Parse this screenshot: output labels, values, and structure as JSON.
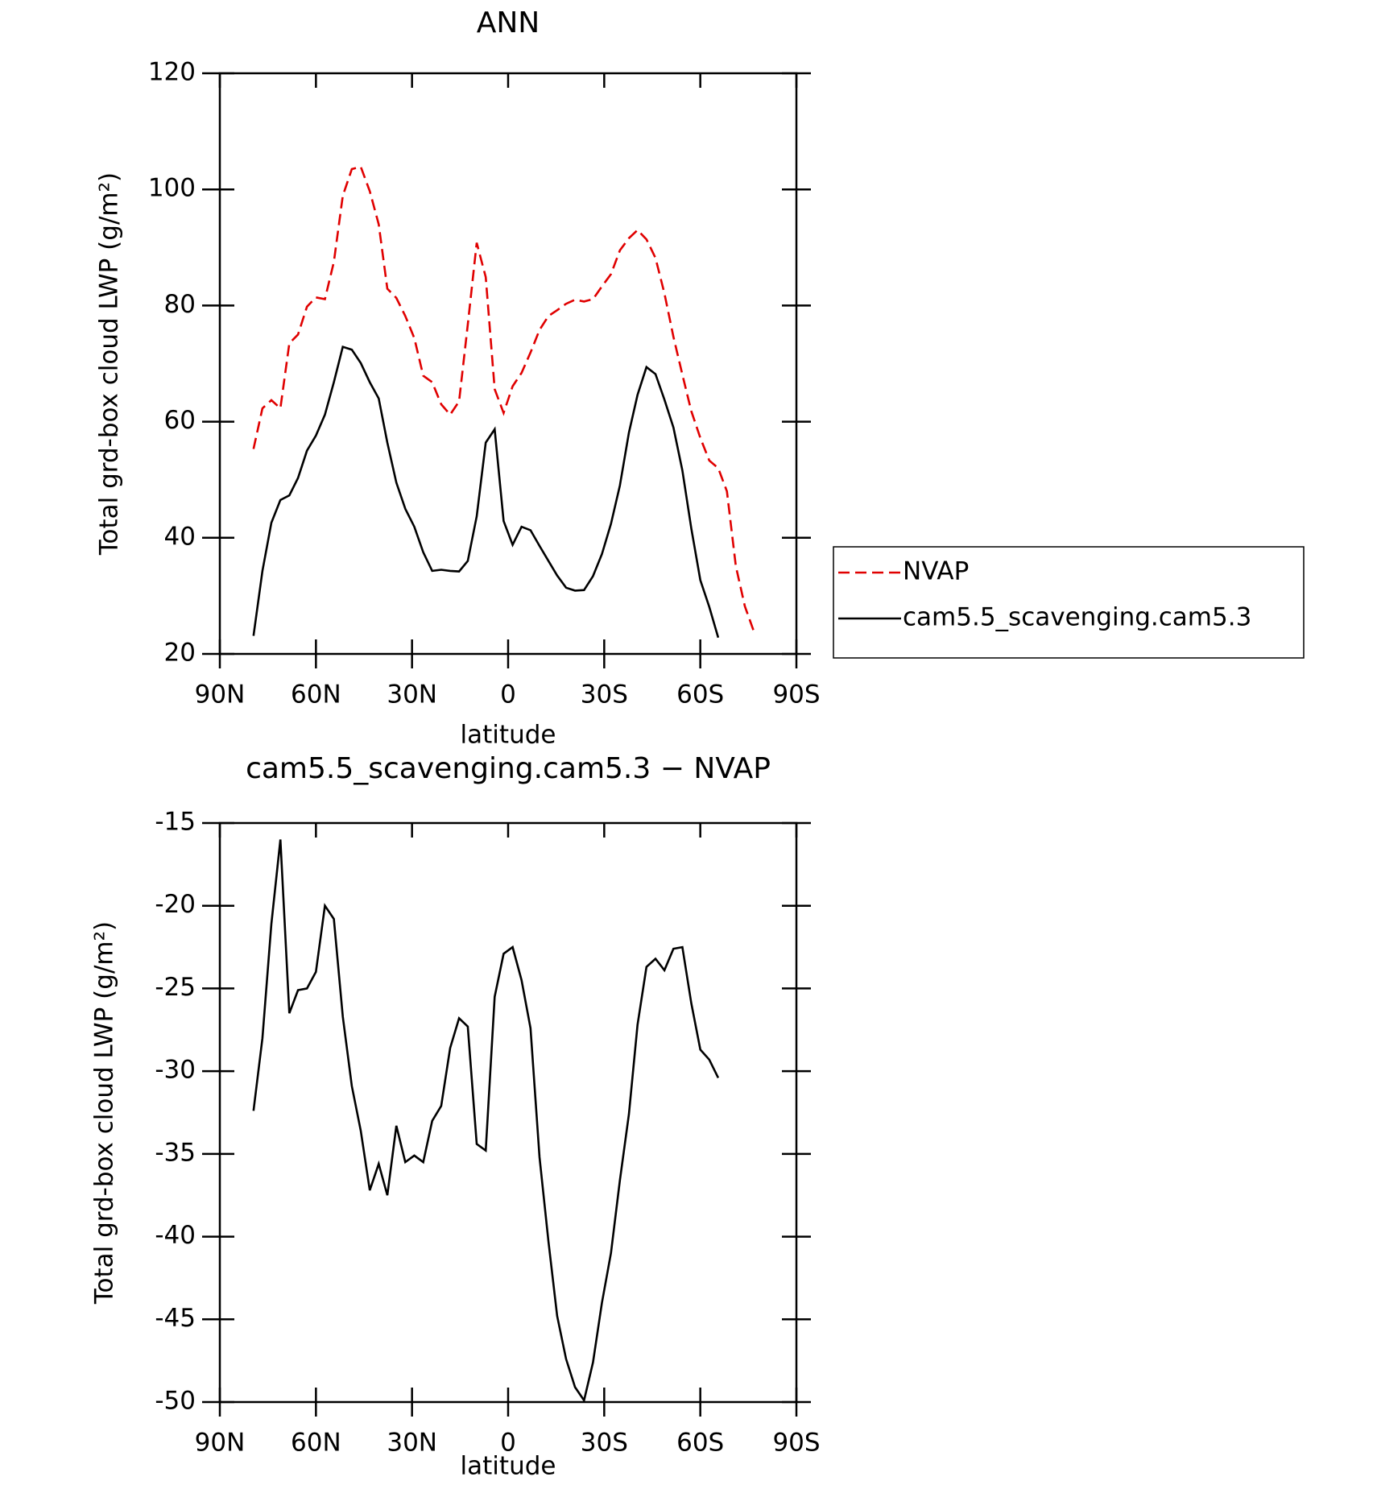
{
  "chart_data": [
    {
      "type": "line",
      "title": "ANN",
      "xlabel": "latitude",
      "ylabel": "Total grd-box cloud LWP (g/m²)",
      "x": [
        79.5,
        76.7,
        73.9,
        71.1,
        68.3,
        65.6,
        62.8,
        60.0,
        57.2,
        54.4,
        51.6,
        48.8,
        46.0,
        43.2,
        40.4,
        37.7,
        34.9,
        32.1,
        29.3,
        26.5,
        23.7,
        20.9,
        18.1,
        15.3,
        12.6,
        9.8,
        7.0,
        4.2,
        1.4,
        -1.4,
        -4.2,
        -7.0,
        -9.8,
        -12.6,
        -15.3,
        -18.1,
        -20.9,
        -23.7,
        -26.5,
        -29.3,
        -32.1,
        -34.9,
        -37.7,
        -40.4,
        -43.2,
        -46.0,
        -48.8,
        -51.6,
        -54.4,
        -57.2,
        -60.0,
        -62.8,
        -65.6,
        -68.3,
        -71.1,
        -73.9,
        -76.7
      ],
      "series": [
        {
          "name": "NVAP",
          "color": "#e00000",
          "dash": "dashed",
          "values": [
            55.3,
            62.3,
            63.7,
            62.3,
            73.5,
            75.0,
            79.8,
            81.4,
            81.1,
            87.5,
            98.9,
            103.5,
            103.9,
            99.7,
            94.0,
            82.9,
            81.3,
            78.2,
            74.4,
            67.9,
            66.8,
            63.0,
            61.2,
            63.5,
            76.7,
            90.8,
            84.9,
            65.6,
            61.5,
            66.1,
            68.4,
            71.9,
            75.8,
            78.2,
            79.2,
            80.3,
            81.0,
            80.7,
            81.1,
            83.3,
            85.4,
            89.5,
            91.6,
            93.0,
            91.4,
            88.2,
            82.1,
            74.6,
            68.1,
            61.8,
            57.2,
            53.3,
            52.0,
            48.0,
            35.1,
            28.2,
            23.9
          ]
        },
        {
          "name": "cam5.5_scavenging.cam5.3",
          "color": "#000000",
          "dash": "solid",
          "values": [
            23.1,
            34.3,
            42.6,
            46.5,
            47.3,
            50.3,
            55.0,
            57.6,
            61.2,
            66.8,
            72.9,
            72.4,
            70.1,
            66.8,
            64.0,
            56.4,
            49.5,
            45.0,
            41.9,
            37.5,
            34.3,
            34.5,
            34.3,
            34.2,
            36.0,
            43.7,
            56.4,
            58.7,
            42.9,
            38.8,
            41.9,
            41.3,
            38.6,
            36.0,
            33.5,
            31.4,
            30.9,
            31.0,
            33.4,
            37.2,
            42.4,
            49.0,
            58.1,
            64.6,
            69.4,
            68.2,
            63.8,
            59.0,
            51.6,
            41.6,
            32.7,
            28.1,
            22.8,
            null,
            null,
            null,
            null
          ]
        }
      ],
      "xlim": [
        90,
        -90
      ],
      "xticks": [
        {
          "value": 90,
          "label": "90N"
        },
        {
          "value": 60,
          "label": "60N"
        },
        {
          "value": 30,
          "label": "30N"
        },
        0,
        {
          "value": -30,
          "label": "30S"
        },
        {
          "value": -60,
          "label": "60S"
        },
        {
          "value": -90,
          "label": "90S"
        }
      ],
      "ylim": [
        20,
        120
      ],
      "yticks": [
        20,
        40,
        60,
        80,
        100,
        120
      ],
      "grid": false,
      "legend": "outside right"
    },
    {
      "type": "line",
      "title": "cam5.5_scavenging.cam5.3 − NVAP",
      "xlabel": "latitude",
      "ylabel": "Total grd-box cloud LWP (g/m²)",
      "x": [
        79.5,
        76.7,
        73.9,
        71.1,
        68.3,
        65.6,
        62.8,
        60.0,
        57.2,
        54.4,
        51.6,
        48.8,
        46.0,
        43.2,
        40.4,
        37.7,
        34.9,
        32.1,
        29.3,
        26.5,
        23.7,
        20.9,
        18.1,
        15.3,
        12.6,
        9.8,
        7.0,
        4.2,
        1.4,
        -1.4,
        -4.2,
        -7.0,
        -9.8,
        -12.6,
        -15.3,
        -18.1,
        -20.9,
        -23.7,
        -26.5,
        -29.3,
        -32.1,
        -34.9,
        -37.7,
        -40.4,
        -43.2,
        -46.0,
        -48.8,
        -51.6,
        -54.4,
        -57.2,
        -60.0,
        -62.8,
        -65.6
      ],
      "values": [
        -32.4,
        -28.0,
        -21.1,
        -16.0,
        -26.5,
        -25.1,
        -25.0,
        -24.0,
        -20.0,
        -20.8,
        -26.7,
        -30.9,
        -33.6,
        -37.2,
        -35.6,
        -37.5,
        -33.3,
        -35.5,
        -35.1,
        -35.5,
        -33.0,
        -32.1,
        -28.6,
        -26.8,
        -27.3,
        -34.4,
        -34.8,
        -25.5,
        -22.9,
        -22.5,
        -24.5,
        -27.4,
        -35.2,
        -40.3,
        -44.8,
        -47.4,
        -49.1,
        -49.9,
        -47.6,
        -44.0,
        -41.0,
        -36.6,
        -32.6,
        -27.2,
        -23.7,
        -23.2,
        -23.9,
        -22.6,
        -22.5,
        -25.9,
        -28.7,
        -29.3,
        -30.4
      ],
      "color": "#000000",
      "xlim": [
        90,
        -90
      ],
      "xticks": [
        {
          "value": 90,
          "label": "90N"
        },
        {
          "value": 60,
          "label": "60N"
        },
        {
          "value": 30,
          "label": "30N"
        },
        0,
        {
          "value": -30,
          "label": "30S"
        },
        {
          "value": -60,
          "label": "60S"
        },
        {
          "value": -90,
          "label": "90S"
        }
      ],
      "ylim": [
        -50,
        -15
      ],
      "yticks": [
        -50,
        -45,
        -40,
        -35,
        -30,
        -25,
        -20,
        -15
      ],
      "grid": false
    }
  ]
}
